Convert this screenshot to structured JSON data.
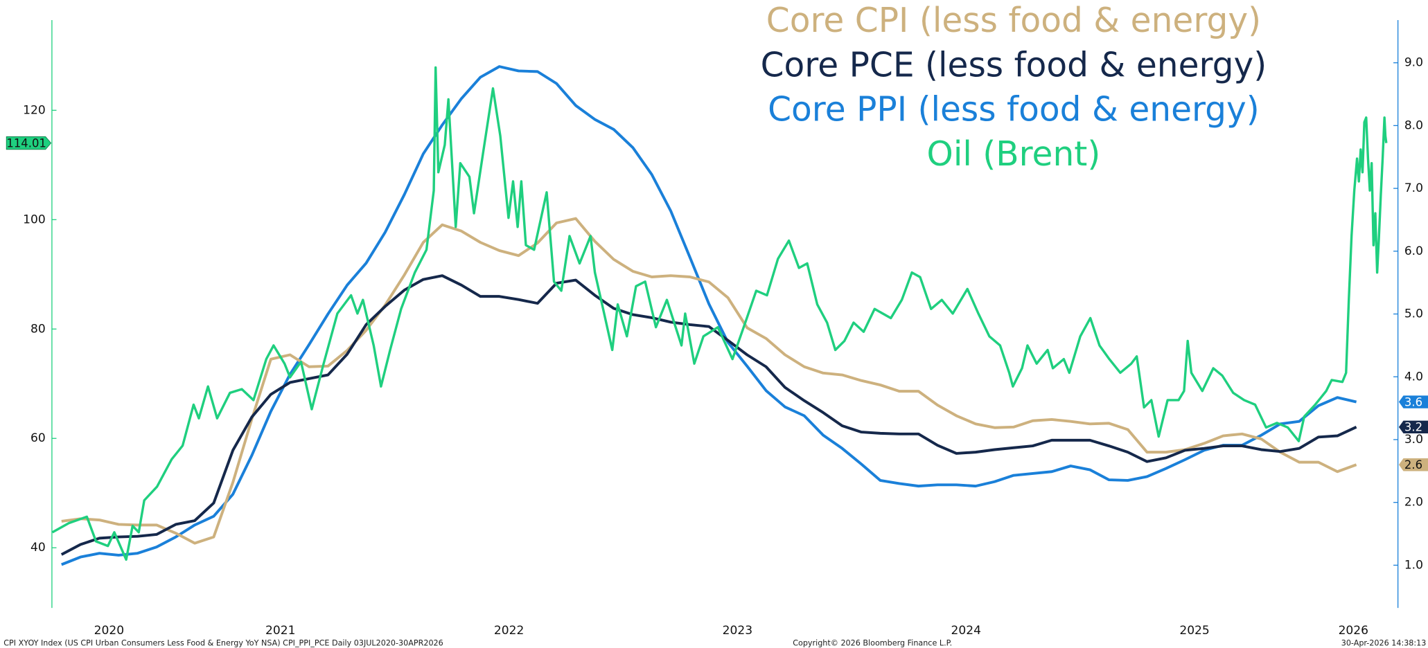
{
  "chart_data": {
    "type": "line",
    "title_lines": null,
    "footer_left": "CPI XYOY Index (US CPI Urban Consumers Less Food & Energy YoY NSA) CPI_PPI_PCE Daily 03JUL2020-30APR2026",
    "footer_center": "Copyright© 2026 Bloomberg Finance L.P.",
    "footer_right": "30-Apr-2026 14:38:13",
    "xlim": [
      2020.5,
      2026.39
    ],
    "xticks": [
      2020,
      2021,
      2022,
      2023,
      2024,
      2025,
      2026
    ],
    "ylim": [
      29,
      136.5
    ],
    "yticks": [
      40,
      60,
      80,
      100,
      120
    ],
    "y2lim": [
      0.32,
      9.68
    ],
    "y2ticks": [
      {
        "value": 1,
        "label": "1.0"
      },
      {
        "value": 2,
        "label": "2.0"
      },
      {
        "value": 3,
        "label": "3.0"
      },
      {
        "value": 4,
        "label": "4.0"
      },
      {
        "value": 5,
        "label": "5.0"
      },
      {
        "value": 6,
        "label": "6.0"
      },
      {
        "value": 7,
        "label": "7.0"
      },
      {
        "value": 8,
        "label": "8.0"
      },
      {
        "value": 9,
        "label": "9.0"
      }
    ],
    "x": [
      2020.542,
      2020.625,
      2020.708,
      2020.792,
      2020.875,
      2020.958,
      2021.042,
      2021.125,
      2021.208,
      2021.292,
      2021.375,
      2021.458,
      2021.542,
      2021.625,
      2021.708,
      2021.792,
      2021.875,
      2021.958,
      2022.042,
      2022.125,
      2022.208,
      2022.292,
      2022.375,
      2022.458,
      2022.542,
      2022.625,
      2022.708,
      2022.792,
      2022.875,
      2022.958,
      2023.042,
      2023.125,
      2023.208,
      2023.292,
      2023.375,
      2023.458,
      2023.542,
      2023.625,
      2023.708,
      2023.792,
      2023.875,
      2023.958,
      2024.042,
      2024.125,
      2024.208,
      2024.292,
      2024.375,
      2024.458,
      2024.542,
      2024.625,
      2024.708,
      2024.792,
      2024.875,
      2024.958,
      2025.042,
      2025.125,
      2025.208,
      2025.292,
      2025.375,
      2025.458,
      2025.542,
      2025.625,
      2025.708,
      2025.792,
      2025.875,
      2025.958,
      2026.042,
      2026.125,
      2026.208
    ],
    "series": [
      {
        "name": "Core CPI (less food & energy)",
        "color": "#cdb17e",
        "axis": "y2",
        "values": [
          1.7,
          1.74,
          1.72,
          1.65,
          1.64,
          1.64,
          1.51,
          1.35,
          1.45,
          2.32,
          3.33,
          4.28,
          4.35,
          4.16,
          4.17,
          4.42,
          4.74,
          5.14,
          5.62,
          6.14,
          6.42,
          6.32,
          6.14,
          6.01,
          5.93,
          6.13,
          6.45,
          6.52,
          6.16,
          5.87,
          5.68,
          5.59,
          5.61,
          5.59,
          5.51,
          5.26,
          4.78,
          4.61,
          4.35,
          4.16,
          4.06,
          4.03,
          3.94,
          3.87,
          3.77,
          3.77,
          3.55,
          3.38,
          3.25,
          3.19,
          3.2,
          3.3,
          3.32,
          3.29,
          3.25,
          3.26,
          3.16,
          2.8,
          2.8,
          2.84,
          2.94,
          3.06,
          3.09,
          3.01,
          2.8,
          2.64,
          2.64,
          2.49,
          2.6
        ]
      },
      {
        "name": "Core PCE (less food & energy)",
        "color": "#15284b",
        "axis": "y2",
        "values": [
          1.17,
          1.33,
          1.43,
          1.45,
          1.46,
          1.49,
          1.65,
          1.71,
          1.99,
          2.83,
          3.36,
          3.72,
          3.91,
          3.97,
          4.03,
          4.36,
          4.83,
          5.12,
          5.38,
          5.55,
          5.61,
          5.46,
          5.28,
          5.28,
          5.23,
          5.17,
          5.49,
          5.54,
          5.3,
          5.09,
          4.99,
          4.94,
          4.87,
          4.83,
          4.8,
          4.58,
          4.35,
          4.16,
          3.83,
          3.62,
          3.43,
          3.22,
          3.12,
          3.1,
          3.09,
          3.09,
          2.91,
          2.78,
          2.8,
          2.84,
          2.87,
          2.9,
          2.99,
          2.99,
          2.99,
          2.9,
          2.8,
          2.65,
          2.71,
          2.83,
          2.86,
          2.9,
          2.9,
          2.84,
          2.81,
          2.86,
          3.04,
          3.06,
          3.2
        ]
      },
      {
        "name": "Core PPI (less food & energy)",
        "color": "#1a80d9",
        "axis": "y2",
        "values": [
          1.01,
          1.13,
          1.19,
          1.16,
          1.19,
          1.29,
          1.45,
          1.64,
          1.78,
          2.13,
          2.75,
          3.45,
          4.04,
          4.51,
          5.0,
          5.46,
          5.81,
          6.3,
          6.9,
          7.55,
          8.01,
          8.43,
          8.77,
          8.94,
          8.87,
          8.86,
          8.67,
          8.32,
          8.1,
          7.94,
          7.65,
          7.22,
          6.64,
          5.9,
          5.16,
          4.55,
          4.17,
          3.78,
          3.52,
          3.38,
          3.07,
          2.86,
          2.61,
          2.35,
          2.3,
          2.26,
          2.28,
          2.28,
          2.26,
          2.33,
          2.43,
          2.46,
          2.49,
          2.58,
          2.52,
          2.36,
          2.35,
          2.41,
          2.54,
          2.68,
          2.83,
          2.91,
          2.91,
          3.07,
          3.25,
          3.29,
          3.54,
          3.67,
          3.6
        ]
      },
      {
        "name": "Oil (Brent)",
        "color": "#1fcf7f",
        "axis": "y",
        "x": [
          2020.502,
          2020.574,
          2020.653,
          2020.693,
          2020.745,
          2020.773,
          2020.825,
          2020.853,
          2020.88,
          2020.904,
          2020.96,
          2021.024,
          2021.072,
          2021.12,
          2021.143,
          2021.183,
          2021.223,
          2021.279,
          2021.331,
          2021.382,
          2021.438,
          2021.47,
          2021.518,
          2021.542,
          2021.59,
          2021.637,
          2021.689,
          2021.749,
          2021.809,
          2021.837,
          2021.861,
          2021.908,
          2021.94,
          2021.98,
          2022.028,
          2022.088,
          2022.139,
          2022.171,
          2022.179,
          2022.191,
          2022.219,
          2022.235,
          2022.267,
          2022.287,
          2022.327,
          2022.347,
          2022.386,
          2022.43,
          2022.462,
          2022.498,
          2022.518,
          2022.538,
          2022.554,
          2022.574,
          2022.61,
          2022.665,
          2022.697,
          2022.729,
          2022.765,
          2022.809,
          2022.857,
          2022.876,
          2022.912,
          2022.952,
          2022.976,
          2023.016,
          2023.056,
          2023.096,
          2023.143,
          2023.191,
          2023.255,
          2023.271,
          2023.311,
          2023.351,
          2023.414,
          2023.478,
          2023.534,
          2023.582,
          2023.629,
          2023.677,
          2023.725,
          2023.769,
          2023.805,
          2023.849,
          2023.892,
          2023.928,
          2023.968,
          2024.008,
          2024.052,
          2024.1,
          2024.171,
          2024.219,
          2024.263,
          2024.299,
          2024.347,
          2024.394,
          2024.442,
          2024.506,
          2024.554,
          2024.602,
          2024.649,
          2024.689,
          2024.705,
          2024.745,
          2024.769,
          2024.809,
          2024.857,
          2024.88,
          2024.928,
          2024.952,
          2025.0,
          2025.044,
          2025.084,
          2025.127,
          2025.175,
          2025.223,
          2025.247,
          2025.279,
          2025.311,
          2025.343,
          2025.382,
          2025.43,
          2025.454,
          2025.47,
          2025.486,
          2025.534,
          2025.582,
          2025.621,
          2025.669,
          2025.717,
          2025.765,
          2025.813,
          2025.861,
          2025.908,
          2025.956,
          2025.98,
          2026.028,
          2026.076,
          2026.1,
          2026.147,
          2026.163,
          2026.175,
          2026.187,
          2026.199,
          2026.211,
          2026.219,
          2026.227,
          2026.235,
          2026.243,
          2026.251,
          2026.259,
          2026.267,
          2026.275,
          2026.283,
          2026.291,
          2026.299,
          2026.307,
          2026.315,
          2026.323,
          2026.331,
          2026.335,
          2026.339
        ],
        "values": [
          42.83,
          44.5,
          45.67,
          41.17,
          40.33,
          42.83,
          37.83,
          44.0,
          42.83,
          48.67,
          51.17,
          56.17,
          58.67,
          66.17,
          63.67,
          69.5,
          63.67,
          68.33,
          69.0,
          67.0,
          74.5,
          77.0,
          73.67,
          71.17,
          74.0,
          65.33,
          73.67,
          82.83,
          86.17,
          82.83,
          85.33,
          77.0,
          69.5,
          76.17,
          83.67,
          90.33,
          94.5,
          105.33,
          127.83,
          108.67,
          113.67,
          122.0,
          98.67,
          110.33,
          107.83,
          101.17,
          112.0,
          124.0,
          115.33,
          100.33,
          107.0,
          98.67,
          107.0,
          95.33,
          94.5,
          105.0,
          88.67,
          87.0,
          97.0,
          92.0,
          97.0,
          90.33,
          83.67,
          76.17,
          84.5,
          78.67,
          87.83,
          88.67,
          80.33,
          85.33,
          77.0,
          82.83,
          73.67,
          78.67,
          80.33,
          74.5,
          81.17,
          87.0,
          86.17,
          92.83,
          96.17,
          91.17,
          92.0,
          84.5,
          81.17,
          76.17,
          77.83,
          81.17,
          79.5,
          83.67,
          82.0,
          85.33,
          90.33,
          89.5,
          83.67,
          85.33,
          82.83,
          87.33,
          82.83,
          78.67,
          77.0,
          72.0,
          69.5,
          72.83,
          77.0,
          73.67,
          76.17,
          72.83,
          74.5,
          72.0,
          78.67,
          82.0,
          77.0,
          74.5,
          72.0,
          73.67,
          75.0,
          65.67,
          67.0,
          60.33,
          67.0,
          67.0,
          68.67,
          77.83,
          72.0,
          68.67,
          72.83,
          71.5,
          68.33,
          67.0,
          66.17,
          62.0,
          62.83,
          62.0,
          59.5,
          64.0,
          66.17,
          68.67,
          70.67,
          70.33,
          72.0,
          85.33,
          97.0,
          105.33,
          111.17,
          107.0,
          112.83,
          108.67,
          117.83,
          118.67,
          111.17,
          105.33,
          110.33,
          95.33,
          101.17,
          90.33,
          97.0,
          104.5,
          111.17,
          118.67,
          115.33,
          114.01
        ]
      }
    ]
  }
}
